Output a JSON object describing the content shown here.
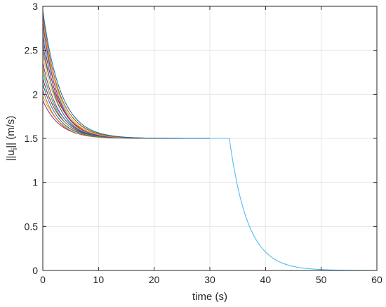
{
  "chart_data": {
    "type": "line",
    "xlabel": "time (s)",
    "ylabel_main": "||u",
    "ylabel_sub": "i",
    "ylabel_end": "|| (m/s)",
    "xlim": [
      0,
      60
    ],
    "ylim": [
      0,
      3
    ],
    "xticks": [
      0,
      10,
      20,
      30,
      40,
      50,
      60
    ],
    "xtick_labels": [
      "0",
      "10",
      "20",
      "30",
      "40",
      "50",
      "60"
    ],
    "yticks": [
      0,
      0.5,
      1,
      1.5,
      2,
      2.5,
      3
    ],
    "ytick_labels": [
      "0",
      "0.5",
      "1",
      "1.5",
      "2",
      "2.5",
      "3"
    ],
    "grid": true,
    "colors": [
      "#0072bd",
      "#d95319",
      "#edb120",
      "#7e2f8e",
      "#77ac30",
      "#4dbeee",
      "#a2142f"
    ],
    "steady_value": 1.5,
    "transient_tau_s": 3.2,
    "decay_start_s": 33.5,
    "decay_tau_s": 3.3,
    "decay_series_color": "#4dbeee",
    "initial_values": [
      2.95,
      2.9,
      2.87,
      2.82,
      2.78,
      2.72,
      2.66,
      2.58,
      2.5,
      2.44,
      2.36,
      2.3,
      2.24,
      2.18,
      2.12,
      2.05,
      1.98,
      1.93
    ]
  }
}
